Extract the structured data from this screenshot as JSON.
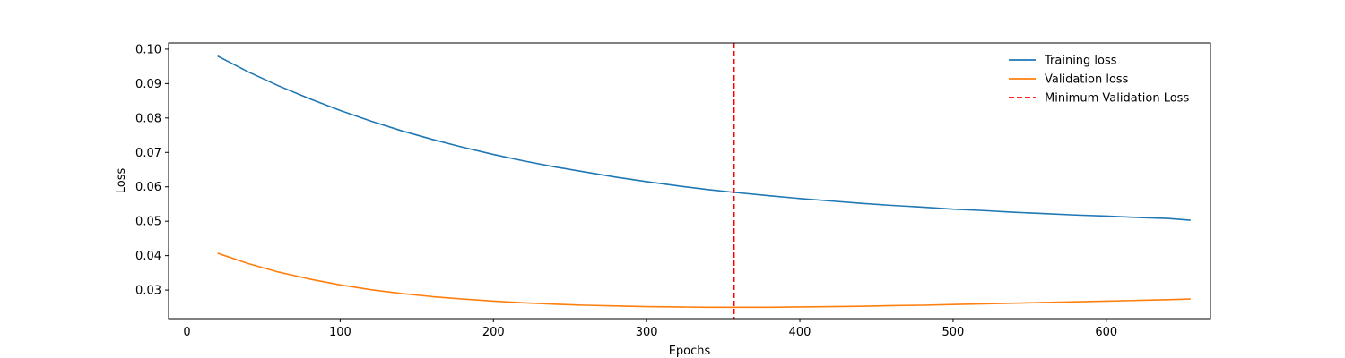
{
  "chart_data": {
    "type": "line",
    "xlabel": "Epochs",
    "ylabel": "Loss",
    "xlim": [
      -12,
      668
    ],
    "ylim": [
      0.0217,
      0.1018
    ],
    "xticks": [
      0,
      100,
      200,
      300,
      400,
      500,
      600
    ],
    "yticks": [
      0.03,
      0.04,
      0.05,
      0.06,
      0.07,
      0.08,
      0.09,
      0.1
    ],
    "ytick_labels": [
      "0.03",
      "0.04",
      "0.05",
      "0.06",
      "0.07",
      "0.08",
      "0.09",
      "0.10"
    ],
    "grid": false,
    "legend_position": "top-right",
    "series": [
      {
        "name": "Training loss",
        "color": "#1f77b4",
        "style": "solid",
        "x": [
          20,
          40,
          60,
          80,
          100,
          120,
          140,
          160,
          180,
          200,
          220,
          240,
          260,
          280,
          300,
          320,
          340,
          357,
          380,
          400,
          420,
          440,
          460,
          480,
          500,
          520,
          540,
          560,
          580,
          600,
          620,
          640,
          655
        ],
        "y": [
          0.098,
          0.0934,
          0.0893,
          0.0856,
          0.0822,
          0.0791,
          0.0763,
          0.0738,
          0.0715,
          0.0694,
          0.0675,
          0.0658,
          0.0643,
          0.0628,
          0.0615,
          0.0603,
          0.0592,
          0.0584,
          0.0574,
          0.0566,
          0.0559,
          0.0552,
          0.0546,
          0.0541,
          0.0535,
          0.0531,
          0.0526,
          0.0522,
          0.0518,
          0.0515,
          0.0511,
          0.0508,
          0.0503
        ]
      },
      {
        "name": "Validation loss",
        "color": "#ff7f0e",
        "style": "solid",
        "x": [
          20,
          40,
          60,
          80,
          100,
          120,
          140,
          160,
          180,
          200,
          220,
          240,
          260,
          280,
          300,
          320,
          340,
          357,
          380,
          400,
          420,
          440,
          460,
          480,
          500,
          520,
          540,
          560,
          580,
          600,
          620,
          640,
          655
        ],
        "y": [
          0.0407,
          0.0377,
          0.0352,
          0.0332,
          0.0315,
          0.0301,
          0.029,
          0.0281,
          0.0274,
          0.0268,
          0.0263,
          0.0259,
          0.0256,
          0.0254,
          0.0252,
          0.0251,
          0.025,
          0.025,
          0.025,
          0.0251,
          0.0252,
          0.0253,
          0.0255,
          0.0256,
          0.0258,
          0.026,
          0.0262,
          0.0264,
          0.0266,
          0.0268,
          0.027,
          0.0272,
          0.0274
        ]
      },
      {
        "name": "Minimum Validation Loss",
        "color": "#ff0000",
        "style": "dashed",
        "vline_x": 357
      }
    ]
  }
}
